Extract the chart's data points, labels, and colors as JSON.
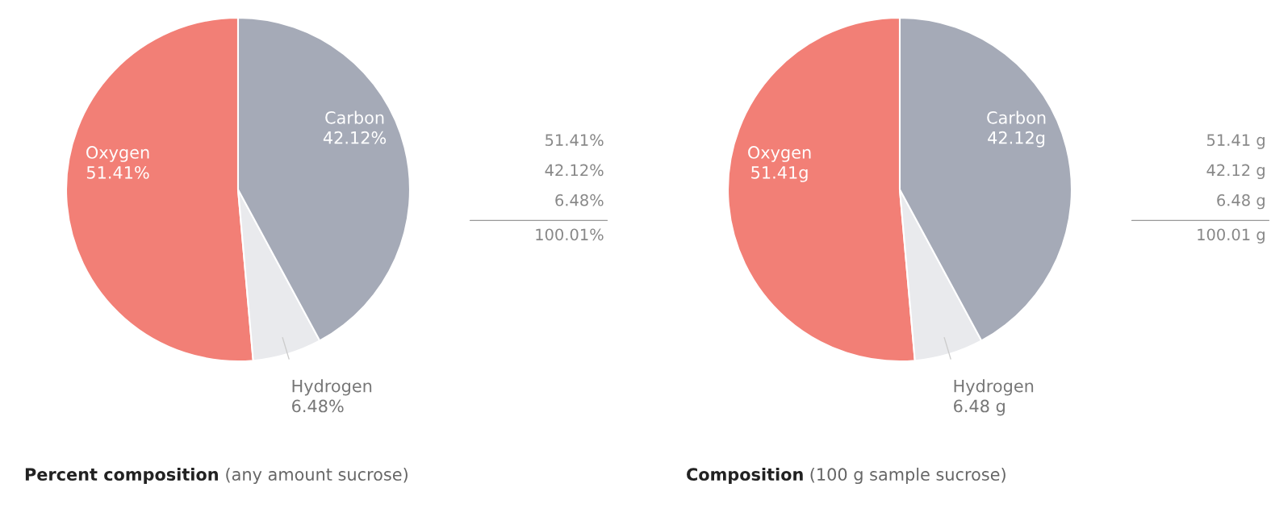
{
  "chart_data": [
    {
      "type": "pie",
      "title": "Percent composition",
      "subtitle": "(any amount sucrose)",
      "categories": [
        "Oxygen",
        "Hydrogen",
        "Carbon"
      ],
      "values": [
        51.41,
        6.48,
        42.12
      ],
      "colors": [
        "#f27f76",
        "#e9eaed",
        "#a5aab7"
      ],
      "value_labels": [
        "51.41%",
        "6.48%",
        "42.12%"
      ],
      "annotations": [
        "51.41%",
        "42.12%",
        "6.48%",
        "100.01%"
      ]
    },
    {
      "type": "pie",
      "title": "Composition",
      "subtitle": "(100 g sample sucrose)",
      "categories": [
        "Oxygen",
        "Hydrogen",
        "Carbon"
      ],
      "values": [
        51.41,
        6.48,
        42.12
      ],
      "colors": [
        "#f27f76",
        "#e9eaed",
        "#a5aab7"
      ],
      "value_labels": [
        "51.41g",
        "6.48 g",
        "42.12g"
      ],
      "annotations": [
        "51.41 g",
        "42.12 g",
        "6.48 g",
        "100.01 g"
      ]
    }
  ]
}
